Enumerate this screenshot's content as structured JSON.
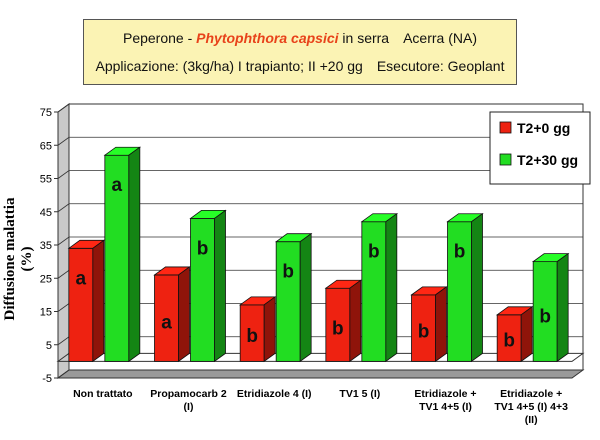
{
  "header": {
    "line1_prefix": "Peperone - ",
    "line1_pathogen": "Phytophthora capsici",
    "line1_suffix": " in serra",
    "line1_location": "Acerra (NA)",
    "line2_application": "Applicazione: (3kg/ha) I trapianto; II +20 gg",
    "line2_executor": "Esecutore: Geoplant"
  },
  "chart_data": {
    "type": "bar",
    "ylabel": "Diffusione malattia (%)",
    "xlabel": "",
    "ylim": [
      -5,
      75
    ],
    "yticks": [
      -5,
      5,
      15,
      25,
      35,
      45,
      55,
      65,
      75
    ],
    "grid": true,
    "legend_position": "top-right",
    "categories": [
      [
        "Non trattato"
      ],
      [
        "Propamocarb 2",
        "(I)"
      ],
      [
        "Etridiazole 4 (I)"
      ],
      [
        "TV1 5 (I)"
      ],
      [
        "Etridiazole +",
        "TV1 4+5 (I)"
      ],
      [
        "Etridiazole +",
        "TV1 4+5 (I) 4+3",
        "(II)"
      ]
    ],
    "series": [
      {
        "name": "T2+0 gg",
        "color": "#ee2211",
        "values": [
          34,
          26,
          17,
          22,
          20,
          14
        ],
        "letters": [
          "a",
          "a",
          "b",
          "b",
          "b",
          "b"
        ]
      },
      {
        "name": "T2+30 gg",
        "color": "#22dd22",
        "values": [
          62,
          43,
          36,
          42,
          42,
          30
        ],
        "letters": [
          "a",
          "b",
          "b",
          "b",
          "b",
          "b"
        ]
      }
    ]
  }
}
